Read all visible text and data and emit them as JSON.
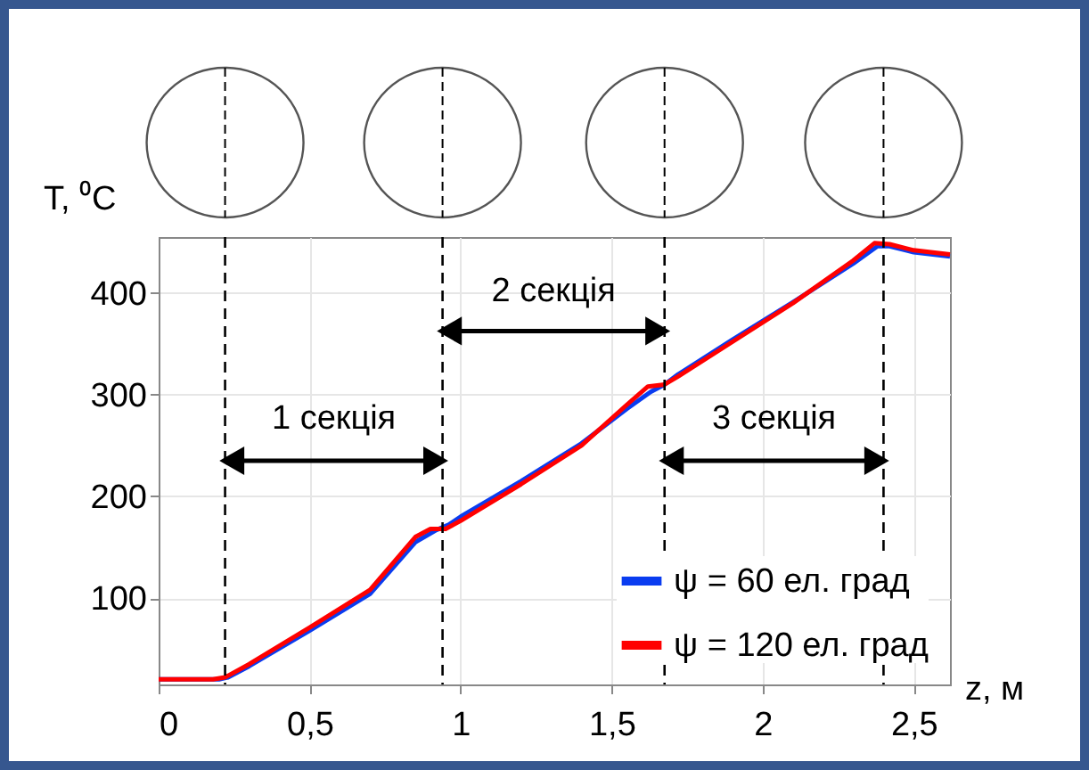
{
  "chart_data": {
    "type": "line",
    "xlabel": "z, м",
    "ylabel": "T, ⁰C",
    "xlim": [
      0,
      2.62
    ],
    "ylim": [
      15,
      455
    ],
    "xticks": [
      0,
      {
        "value": 0.5,
        "label": "0,5"
      },
      1,
      {
        "value": 1.5,
        "label": "1,5"
      },
      2,
      {
        "value": 2.5,
        "label": "2,5"
      }
    ],
    "yticks": [
      100,
      200,
      300,
      400
    ],
    "grid": true,
    "legend": "bottom right",
    "line_style": "solid",
    "marker": "none",
    "series": [
      {
        "name": "ψ = 60 ел. град",
        "color": "#0a3cf0",
        "x": [
          0,
          0.2,
          0.23,
          0.3,
          0.5,
          0.7,
          0.85,
          0.92,
          0.96,
          1.0,
          1.2,
          1.4,
          1.55,
          1.63,
          1.675,
          1.72,
          1.9,
          2.1,
          2.3,
          2.38,
          2.42,
          2.5,
          2.62
        ],
        "values": [
          20,
          20,
          22,
          33,
          68,
          104,
          155,
          167,
          172,
          180,
          215,
          252,
          286,
          303,
          310,
          320,
          354,
          391,
          429,
          446,
          446,
          440,
          436
        ]
      },
      {
        "name": "ψ = 120 ел. град",
        "color": "#ff0000",
        "x": [
          0,
          0.18,
          0.22,
          0.3,
          0.5,
          0.7,
          0.85,
          0.9,
          0.95,
          1.0,
          1.2,
          1.4,
          1.55,
          1.62,
          1.675,
          1.72,
          1.9,
          2.1,
          2.3,
          2.37,
          2.42,
          2.5,
          2.62
        ],
        "values": [
          20,
          20,
          22,
          35,
          71,
          108,
          160,
          168,
          168,
          176,
          212,
          250,
          290,
          308,
          310,
          318,
          352,
          390,
          432,
          449,
          448,
          442,
          438
        ]
      }
    ],
    "ref_lines": [
      {
        "axis": "x",
        "value": 0.22,
        "line_style": "dashed",
        "color": "#000000"
      },
      {
        "axis": "x",
        "value": 0.94,
        "line_style": "dashed",
        "color": "#000000"
      },
      {
        "axis": "x",
        "value": 1.675,
        "line_style": "dashed",
        "color": "#000000"
      },
      {
        "axis": "x",
        "value": 2.4,
        "line_style": "dashed",
        "color": "#000000"
      }
    ],
    "annotations": [
      "1 секція",
      "2 секція",
      "3 секція"
    ]
  }
}
